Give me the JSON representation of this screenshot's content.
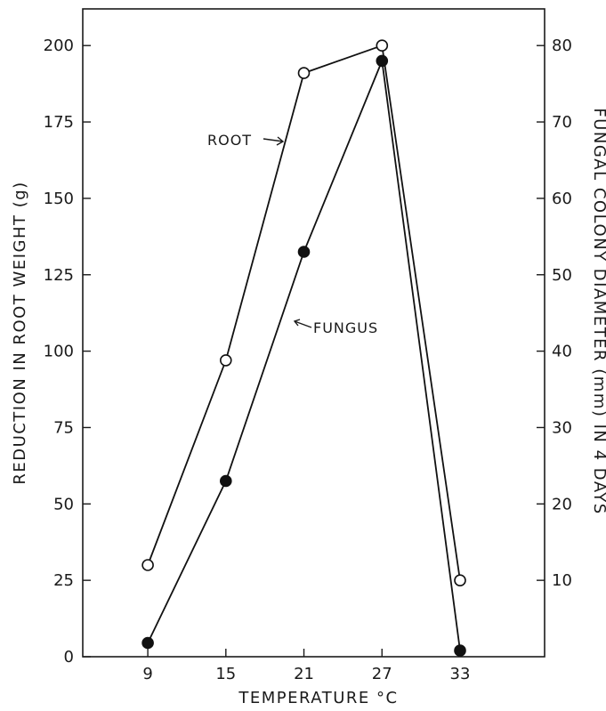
{
  "chart_data": {
    "type": "line",
    "xlabel": "TEMPERATURE °C",
    "ylabel": "REDUCTION IN ROOT WEIGHT (g)",
    "y2label": "FUNGAL COLONY DIAMETER (mm) IN 4 DAYS",
    "x": [
      9,
      15,
      21,
      27,
      33
    ],
    "x_ticks": [
      "9",
      "15",
      "21",
      "27",
      "33"
    ],
    "ylim": [
      0,
      212
    ],
    "y_ticks": [
      "0",
      "25",
      "50",
      "75",
      "100",
      "125",
      "150",
      "175",
      "200"
    ],
    "y2lim": [
      0,
      84.8
    ],
    "y2_ticks": [
      "10",
      "20",
      "30",
      "40",
      "50",
      "60",
      "70",
      "80"
    ],
    "grid": false,
    "series": [
      {
        "name": "ROOT",
        "axis": "left",
        "marker": "open-circle",
        "values": [
          30,
          97,
          191,
          200,
          25
        ]
      },
      {
        "name": "FUNGUS",
        "axis": "right",
        "marker": "filled-circle",
        "values": [
          1.8,
          23,
          53,
          78,
          0.8
        ]
      }
    ]
  }
}
